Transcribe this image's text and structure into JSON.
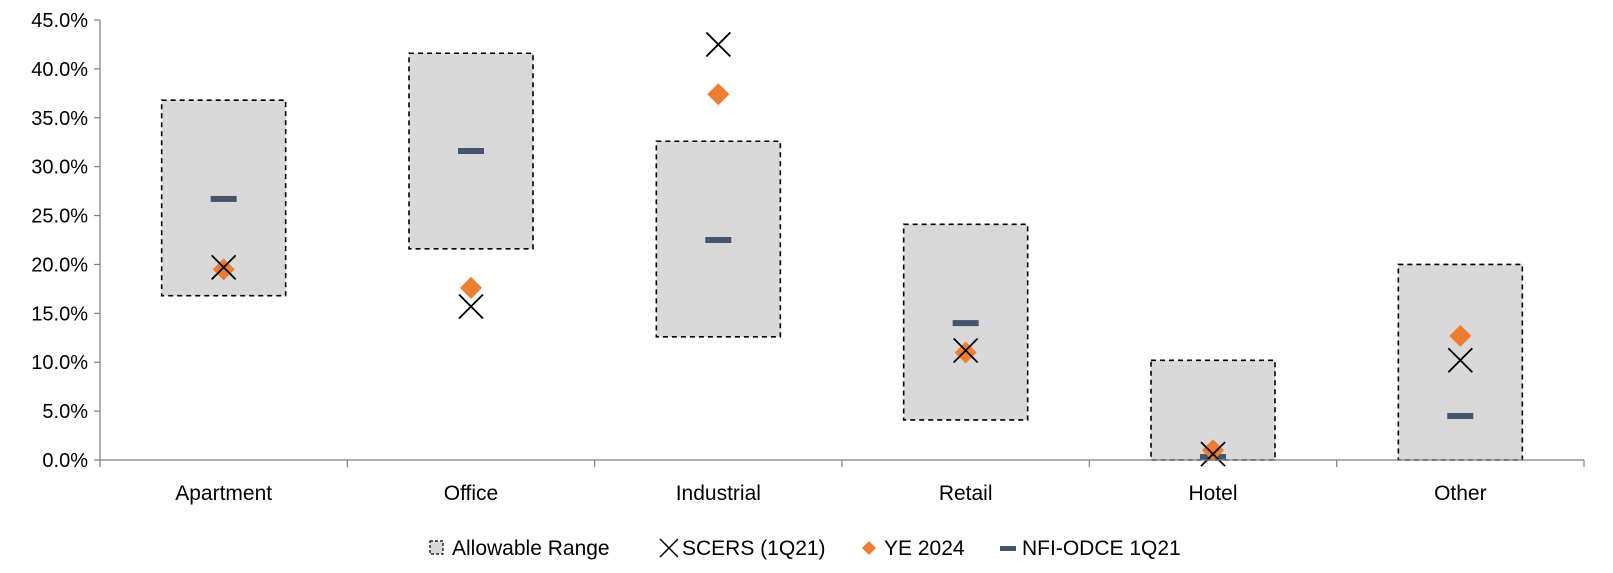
{
  "chart_data": {
    "type": "scatter",
    "categories": [
      "Apartment",
      "Office",
      "Industrial",
      "Retail",
      "Hotel",
      "Other"
    ],
    "y_ticks": [
      "0.0%",
      "5.0%",
      "10.0%",
      "15.0%",
      "20.0%",
      "25.0%",
      "30.0%",
      "35.0%",
      "40.0%",
      "45.0%"
    ],
    "ylim": [
      0,
      45
    ],
    "grid": false,
    "legend_position": "bottom",
    "series": [
      {
        "name": "Allowable Range",
        "kind": "range-box",
        "color": "#d9d9d9",
        "low": [
          16.8,
          21.6,
          12.6,
          4.1,
          0.0,
          0.0
        ],
        "high": [
          36.8,
          41.6,
          32.6,
          24.1,
          10.2,
          20.0
        ]
      },
      {
        "name": "SCERS (1Q21)",
        "kind": "x-marker",
        "color": "#000000",
        "values": [
          19.7,
          15.7,
          42.5,
          11.2,
          0.6,
          10.2
        ]
      },
      {
        "name": "YE 2024",
        "kind": "diamond",
        "color": "#ed7d31",
        "values": [
          19.5,
          17.6,
          37.4,
          11.0,
          1.0,
          12.7
        ]
      },
      {
        "name": "NFI-ODCE 1Q21",
        "kind": "dash",
        "color": "#44546a",
        "values": [
          26.7,
          31.6,
          22.5,
          14.0,
          0.3,
          4.5
        ]
      }
    ]
  }
}
